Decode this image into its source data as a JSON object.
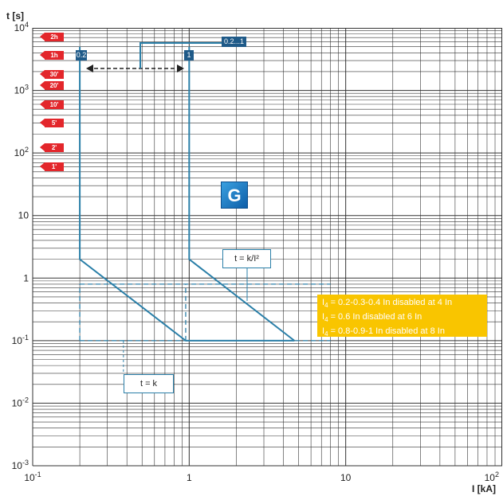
{
  "chart_data": {
    "type": "line",
    "xlabel": "I [kA]",
    "ylabel": "t [s]",
    "xscale": "log",
    "yscale": "log",
    "xlim": [
      0.1,
      100
    ],
    "ylim": [
      0.001,
      10000
    ],
    "x_ticks": [
      {
        "base": "10",
        "exp": "-1"
      },
      {
        "base": "1",
        "exp": ""
      },
      {
        "base": "10",
        "exp": ""
      },
      {
        "base": "10",
        "exp": "2"
      }
    ],
    "y_ticks": [
      {
        "base": "10",
        "exp": "4"
      },
      {
        "base": "10",
        "exp": "3"
      },
      {
        "base": "10",
        "exp": "2"
      },
      {
        "base": "10",
        "exp": ""
      },
      {
        "base": "1",
        "exp": ""
      },
      {
        "base": "10",
        "exp": "-1"
      },
      {
        "base": "10",
        "exp": "-2"
      },
      {
        "base": "10",
        "exp": "-3"
      }
    ],
    "grid": true,
    "series": [
      {
        "label": "0.2",
        "x": [
          0.2,
          0.2,
          0.95,
          4.7
        ],
        "y": [
          5000,
          2,
          0.1,
          0.1
        ]
      },
      {
        "label": "1",
        "x": [
          1,
          1,
          4.7
        ],
        "y": [
          5000,
          2,
          0.1
        ]
      }
    ],
    "curve_labels": {
      "left": "0.2",
      "right": "1",
      "range": "0.2...1"
    },
    "dashed_lines": [
      {
        "x": [
          0.2,
          8
        ],
        "y": [
          0.8,
          0.8
        ]
      },
      {
        "x": [
          0.2,
          8
        ],
        "y": [
          0.1,
          0.1
        ]
      },
      {
        "x": [
          0.2,
          0.2
        ],
        "y": [
          0.1,
          0.8
        ]
      },
      {
        "x": [
          0.95,
          0.95
        ],
        "y": [
          0.1,
          0.8
        ]
      }
    ],
    "time_markers": [
      {
        "label": "2h",
        "t": 7200
      },
      {
        "label": "1h",
        "t": 3600
      },
      {
        "label": "30'",
        "t": 1800
      },
      {
        "label": "20'",
        "t": 1200
      },
      {
        "label": "10'",
        "t": 600
      },
      {
        "label": "5'",
        "t": 300
      },
      {
        "label": "2'",
        "t": 120
      },
      {
        "label": "1'",
        "t": 60
      }
    ],
    "annotations": {
      "formula_k": "t = k",
      "formula_k_i2": "t = k/I²",
      "badge": "G",
      "notes": [
        {
          "sym": "I",
          "sub": "4",
          "text": " = 0.2-0.3-0.4 In disabled at 4 In"
        },
        {
          "sym": "I",
          "sub": "4",
          "text": " = 0.6 In disabled at 6 In"
        },
        {
          "sym": "I",
          "sub": "4",
          "text": " = 0.8-0.9-1 In disabled at 8 In"
        }
      ]
    },
    "colors": {
      "curve": "#2a7fa8",
      "grid": "#333333",
      "tag": "#e3262b",
      "note": "#f9c500",
      "badge": "#1f6fb8"
    }
  }
}
